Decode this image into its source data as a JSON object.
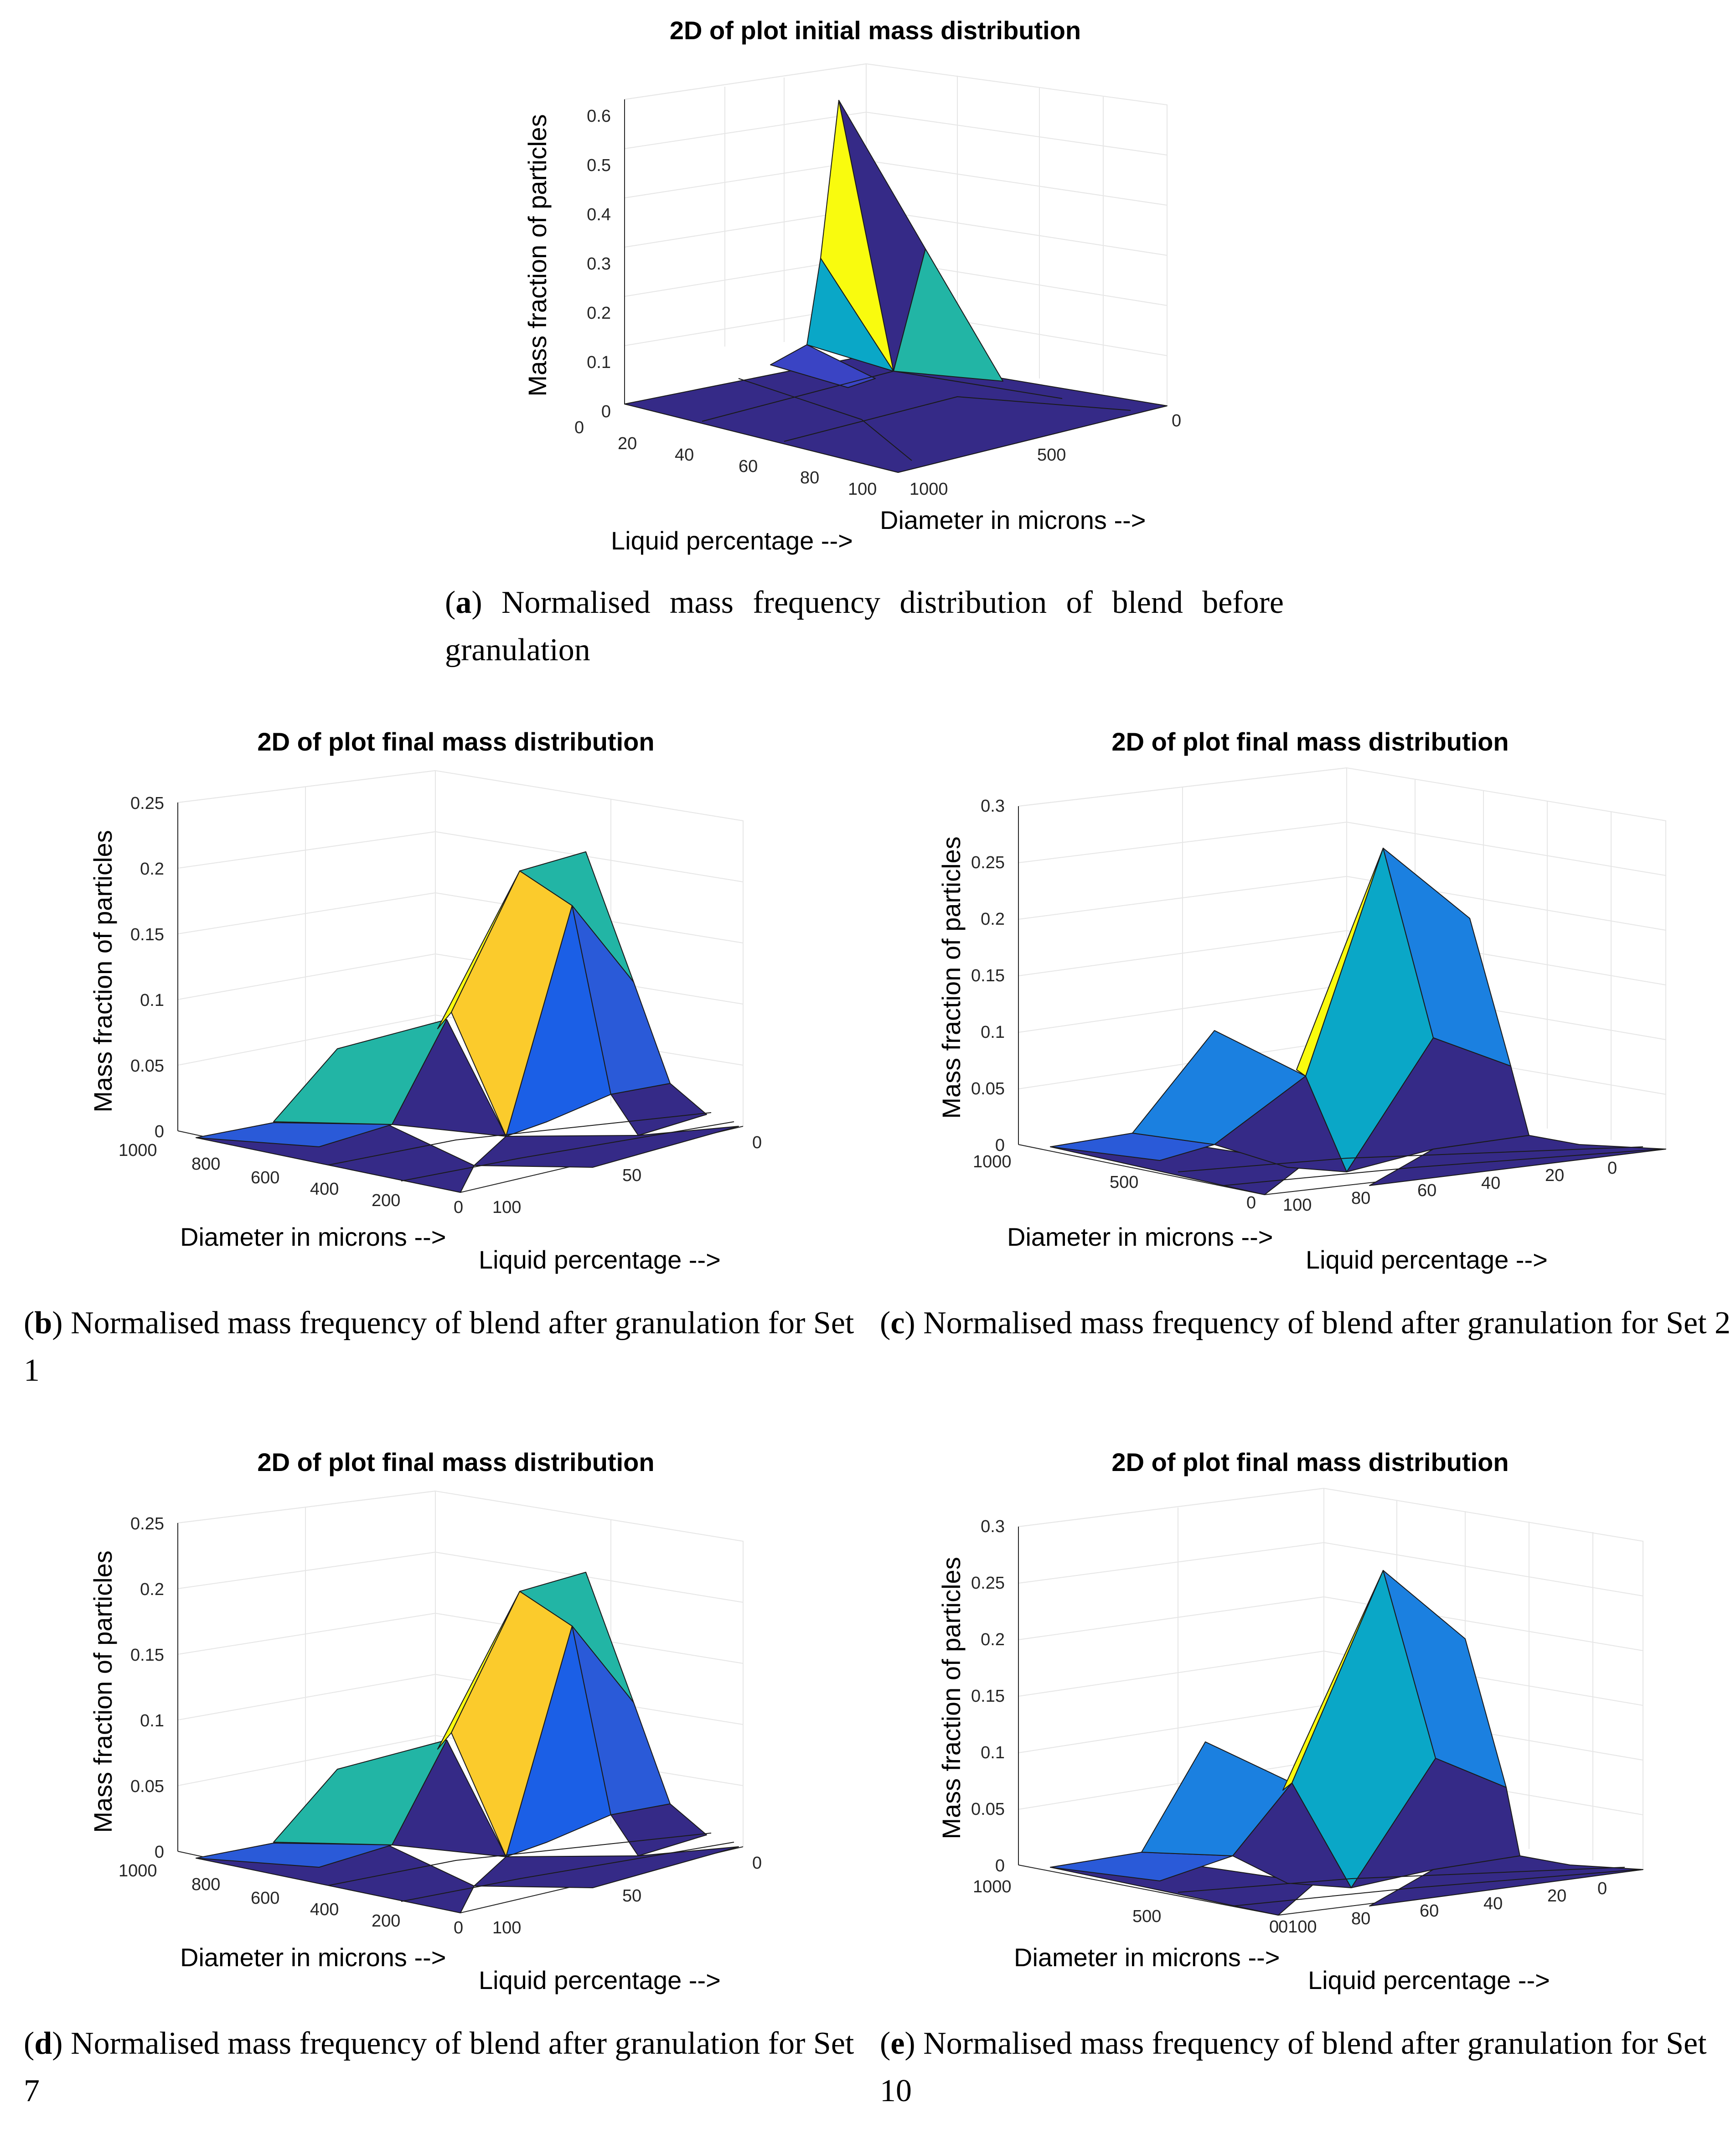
{
  "chart_data": [
    {
      "id": "a",
      "type": "surface",
      "title": "2D of plot initial mass distribution",
      "zlabel": "Mass fraction of particles",
      "xlabel": "Liquid percentage -->",
      "ylabel": "Diameter in microns -->",
      "x_ticks": [
        "0",
        "20",
        "40",
        "60",
        "80",
        "100"
      ],
      "y_ticks": [
        "1000",
        "500",
        "0"
      ],
      "z_ticks": [
        "0",
        "0.1",
        "0.2",
        "0.3",
        "0.4",
        "0.5",
        "0.6"
      ],
      "zlim": [
        0,
        0.6
      ],
      "peak_mass_fraction": 0.6,
      "caption_letter": "a",
      "caption_text": " Normalised mass frequency distribution of blend before granulation"
    },
    {
      "id": "b",
      "type": "surface",
      "title": "2D of plot final mass distribution",
      "zlabel": "Mass fraction of particles",
      "xlabel": "Diameter in microns -->",
      "ylabel": "Liquid percentage -->",
      "x_ticks": [
        "1000",
        "800",
        "600",
        "400",
        "200",
        "0"
      ],
      "y_ticks": [
        "100",
        "50",
        "0"
      ],
      "z_ticks": [
        "0",
        "0.05",
        "0.1",
        "0.15",
        "0.2",
        "0.25"
      ],
      "zlim": [
        0,
        0.25
      ],
      "peak_mass_fraction": 0.22,
      "caption_letter": "b",
      "caption_text": " Normalised mass frequency of blend after granulation for Set 1"
    },
    {
      "id": "c",
      "type": "surface",
      "title": "2D of plot final mass distribution",
      "zlabel": "Mass fraction of particles",
      "xlabel": "Diameter in microns -->",
      "ylabel": "Liquid percentage -->",
      "x_ticks": [
        "1000",
        "500",
        "0"
      ],
      "y_ticks": [
        "100",
        "80",
        "60",
        "40",
        "20",
        "0"
      ],
      "z_ticks": [
        "0",
        "0.05",
        "0.1",
        "0.15",
        "0.2",
        "0.25",
        "0.3"
      ],
      "zlim": [
        0,
        0.3
      ],
      "peak_mass_fraction": 0.27,
      "caption_letter": "c",
      "caption_text": " Normalised mass frequency of blend after granulation for Set 2"
    },
    {
      "id": "d",
      "type": "surface",
      "title": "2D of plot final mass distribution",
      "zlabel": "Mass fraction of particles",
      "xlabel": "Diameter in microns -->",
      "ylabel": "Liquid percentage -->",
      "x_ticks": [
        "1000",
        "800",
        "600",
        "400",
        "200",
        "0"
      ],
      "y_ticks": [
        "100",
        "50",
        "0"
      ],
      "z_ticks": [
        "0",
        "0.05",
        "0.1",
        "0.15",
        "0.2",
        "0.25"
      ],
      "zlim": [
        0,
        0.25
      ],
      "peak_mass_fraction": 0.22,
      "caption_letter": "d",
      "caption_text": " Normalised mass frequency of blend after granulation for Set 7"
    },
    {
      "id": "e",
      "type": "surface",
      "title": "2D of plot final mass distribution",
      "zlabel": "Mass fraction of particles",
      "xlabel": "Diameter in microns -->",
      "ylabel": "Liquid percentage -->",
      "x_ticks": [
        "1000",
        "500",
        "0"
      ],
      "y_ticks": [
        "0100",
        "80",
        "60",
        "40",
        "20",
        "0"
      ],
      "z_ticks": [
        "0",
        "0.05",
        "0.1",
        "0.15",
        "0.2",
        "0.25",
        "0.3"
      ],
      "zlim": [
        0,
        0.3
      ],
      "peak_mass_fraction": 0.27,
      "caption_letter": "e",
      "caption_text": " Normalised mass frequency of blend after granulation for Set 10"
    }
  ],
  "colors": {
    "dark": "#352a87",
    "blue": "#2a5ad8",
    "midblue": "#1b80e0",
    "cyan": "#0aa7c7",
    "teal": "#22b5a5",
    "yellow": "#f9fb0e",
    "gold": "#fbcb2c",
    "grid": "#e6e6e6"
  }
}
